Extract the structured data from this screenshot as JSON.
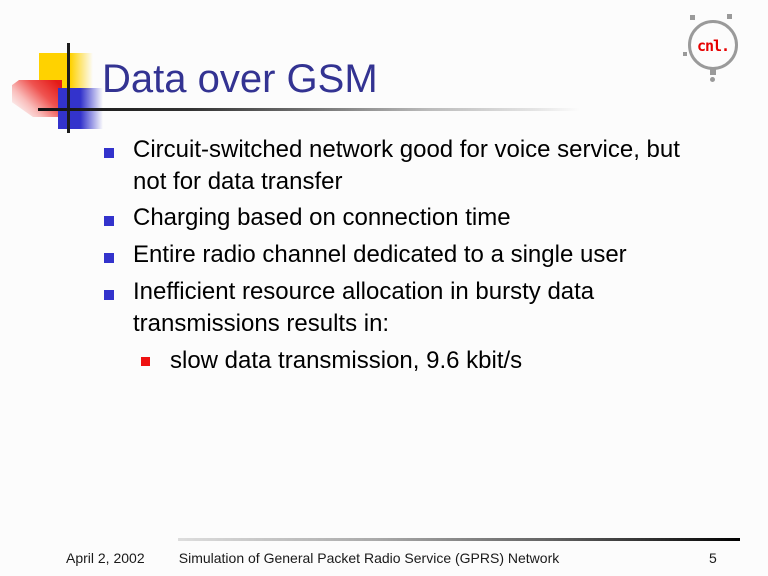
{
  "slide": {
    "title": "Data over GSM",
    "bullets": [
      {
        "text": "Circuit-switched network good for voice service, but\nnot for data transfer"
      },
      {
        "text": "Charging based on connection time"
      },
      {
        "text": "Entire radio channel dedicated to a single user"
      },
      {
        "text": "Inefficient resource allocation in bursty data\ntransmissions results in:"
      }
    ],
    "sub_bullets": [
      {
        "text": "slow data transmission, 9.6 kbit/s"
      }
    ],
    "footer": {
      "date": "April 2, 2002",
      "title": "Simulation of General Packet Radio Service (GPRS) Network",
      "page_number": "5"
    },
    "logo": {
      "text": "cnl."
    },
    "colors": {
      "title_text": "#333392",
      "bullet_level1": "#3333cc",
      "bullet_level2": "#ee1111",
      "logo_text": "#e60000",
      "deco_yellow": "#ffd200",
      "deco_blue": "#3333cc",
      "deco_red": "#e41b17",
      "background": "#fcfcfc"
    }
  }
}
